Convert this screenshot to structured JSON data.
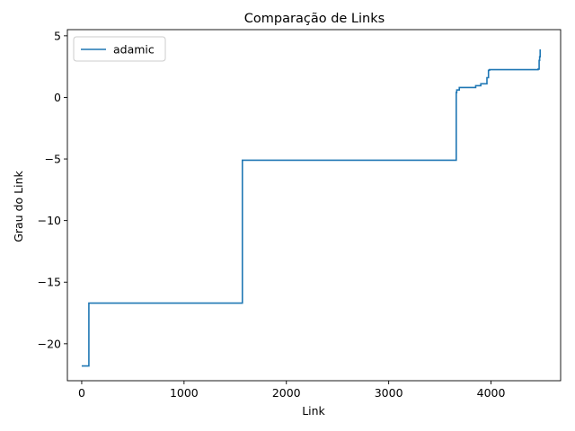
{
  "chart_data": {
    "type": "line",
    "title": "Comparação de Links",
    "xlabel": "Link",
    "ylabel": "Grau do Link",
    "xlim": [
      -140,
      4680
    ],
    "ylim": [
      -23,
      5.5
    ],
    "xticks": [
      0,
      1000,
      2000,
      3000,
      4000
    ],
    "yticks": [
      5,
      0,
      -5,
      -10,
      -15,
      -20
    ],
    "xtick_labels": [
      "0",
      "1000",
      "2000",
      "3000",
      "4000"
    ],
    "ytick_labels": [
      "5",
      "0",
      "−5",
      "−10",
      "−15",
      "−20"
    ],
    "grid": false,
    "legend_position": "top-left",
    "series": [
      {
        "name": "adamic",
        "color": "#1f77b4",
        "step": "post",
        "x": [
          0,
          70,
          1570,
          3660,
          3665,
          3690,
          3850,
          3900,
          3960,
          3975,
          3985,
          4460,
          4470,
          4475,
          4480
        ],
        "y": [
          -21.8,
          -16.7,
          -5.1,
          0.4,
          0.6,
          0.8,
          0.95,
          1.1,
          1.6,
          2.2,
          2.25,
          2.3,
          3.0,
          3.3,
          3.9
        ]
      }
    ]
  }
}
